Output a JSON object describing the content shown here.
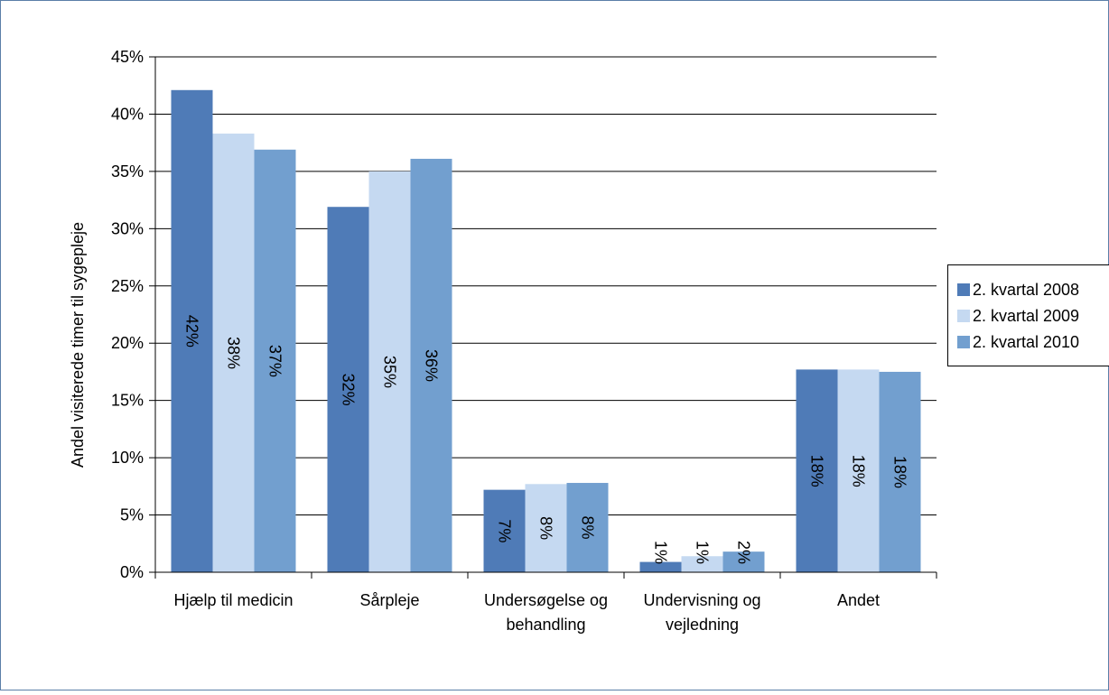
{
  "chart_data": {
    "type": "bar",
    "title": "",
    "xlabel": "",
    "ylabel": "Andel visiterede timer til sygepleje",
    "ylim": [
      0,
      45
    ],
    "yticks": [
      "0%",
      "5%",
      "10%",
      "15%",
      "20%",
      "25%",
      "30%",
      "35%",
      "40%",
      "45%"
    ],
    "grid": true,
    "legend_position": "right",
    "categories": [
      [
        "Hjælp til medicin"
      ],
      [
        "Sårpleje"
      ],
      [
        "Undersøgelse og",
        "behandling"
      ],
      [
        "Undervisning og",
        "vejledning"
      ],
      [
        "Andet"
      ]
    ],
    "series": [
      {
        "name": "2. kvartal 2008",
        "color": "#4F7BB7",
        "values": [
          42.1,
          31.9,
          7.2,
          0.9,
          17.7
        ],
        "labels": [
          "42%",
          "32%",
          "7%",
          "1%",
          "18%"
        ]
      },
      {
        "name": "2. kvartal 2009",
        "color": "#C5D9F1",
        "values": [
          38.3,
          35.0,
          7.7,
          1.4,
          17.7
        ],
        "labels": [
          "38%",
          "35%",
          "8%",
          "1%",
          "18%"
        ]
      },
      {
        "name": "2. kvartal 2010",
        "color": "#729FCF",
        "values": [
          36.9,
          36.1,
          7.8,
          1.8,
          17.5
        ],
        "labels": [
          "37%",
          "36%",
          "8%",
          "2%",
          "18%"
        ]
      }
    ]
  }
}
